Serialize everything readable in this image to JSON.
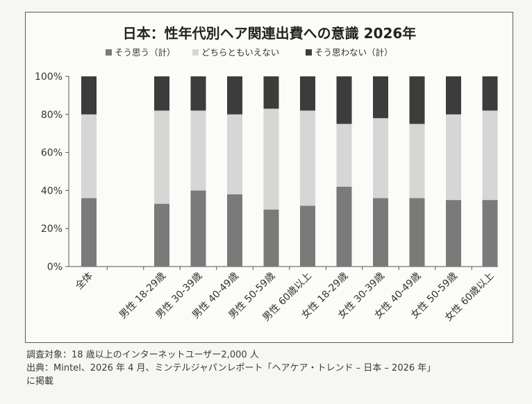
{
  "chart_data": {
    "type": "bar",
    "stacked": true,
    "percent": true,
    "title": "日本：性年代別ヘア関連出費への意識 2026年",
    "categories": [
      "全体",
      "",
      "男性 18-29歳",
      "男性 30-39歳",
      "男性 40-49歳",
      "男性 50-59歳",
      "男性 60歳以上",
      "女性 18-29歳",
      "女性 30-39歳",
      "女性 40-49歳",
      "女性 50-59歳",
      "女性 60歳以上"
    ],
    "series": [
      {
        "name": "そう思う（計）",
        "color": "#7a7a7a",
        "values": [
          36,
          null,
          33,
          40,
          38,
          30,
          32,
          42,
          36,
          36,
          35,
          35
        ]
      },
      {
        "name": "どちらともいえない",
        "color": "#d6d6d6",
        "values": [
          44,
          null,
          49,
          42,
          42,
          53,
          50,
          33,
          42,
          39,
          45,
          47
        ]
      },
      {
        "name": "そう思わない（計）",
        "color": "#3c3c3c",
        "values": [
          20,
          null,
          18,
          18,
          20,
          17,
          18,
          25,
          22,
          25,
          20,
          18
        ]
      }
    ],
    "yticks": [
      "100%",
      "80%",
      "60%",
      "40%",
      "20%",
      "0%"
    ],
    "ylim": [
      0,
      100
    ],
    "xlabel": "",
    "ylabel": "",
    "legend_position": "top",
    "grid": false
  },
  "notes": {
    "line1": "調査対象：18 歳以上のインターネットユーザー2,000 人",
    "line2": "出典：Mintel、2026 年 4 月、ミンテルジャパンレポート「ヘアケア・トレンド – 日本 – 2026 年」",
    "line3": "に掲載"
  }
}
